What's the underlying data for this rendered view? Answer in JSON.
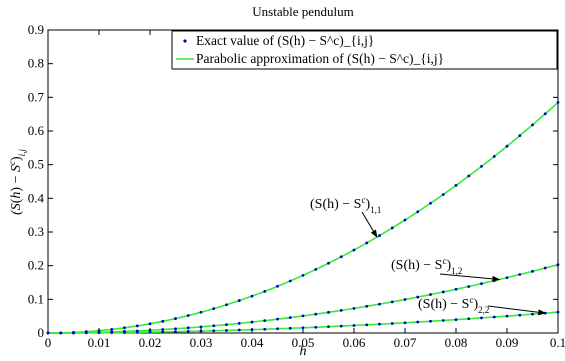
{
  "chart_data": {
    "type": "scatter",
    "title": "Unstable pendulum",
    "xlabel": "h",
    "ylabel": "(S(h) − S^c)_{i,j}",
    "xlim": [
      0,
      0.1
    ],
    "ylim": [
      0,
      0.9
    ],
    "x_ticks": [
      "0",
      "0.01",
      "0.02",
      "0.03",
      "0.04",
      "0.05",
      "0.06",
      "0.07",
      "0.08",
      "0.09",
      "0.1"
    ],
    "y_ticks": [
      "0",
      "0.1",
      "0.2",
      "0.3",
      "0.4",
      "0.5",
      "0.6",
      "0.7",
      "0.8",
      "0.9"
    ],
    "grid": false,
    "legend": {
      "position": "top-right",
      "entries": [
        {
          "label": "Exact value of (S(h) − S^c)_{i,j}",
          "marker": "dot",
          "color": "#0000cc"
        },
        {
          "label": "Parabolic approximation of (S(h) − S^c)_{i,j}",
          "marker": "line",
          "color": "#33ee33"
        }
      ]
    },
    "series": [
      {
        "name": "(S(h) − S^c)_{1,1}",
        "coefficient": 68.5
      },
      {
        "name": "(S(h) − S^c)_{1,2}",
        "coefficient": 20.3
      },
      {
        "name": "(S(h) − S^c)_{2,2}",
        "coefficient": 6.2
      }
    ],
    "x": [
      0,
      0.0025,
      0.005,
      0.0075,
      0.01,
      0.0125,
      0.015,
      0.0175,
      0.02,
      0.0225,
      0.025,
      0.0275,
      0.03,
      0.0325,
      0.035,
      0.0375,
      0.04,
      0.0425,
      0.045,
      0.0475,
      0.05,
      0.0525,
      0.055,
      0.0575,
      0.06,
      0.0625,
      0.065,
      0.0675,
      0.07,
      0.0725,
      0.075,
      0.0775,
      0.08,
      0.0825,
      0.085,
      0.0875,
      0.09,
      0.0925,
      0.095,
      0.0975,
      0.1
    ],
    "annotations": [
      {
        "base": "(S(h) − S",
        "sup": "c",
        "close": ")",
        "sub": "1,1",
        "series": 0
      },
      {
        "base": "(S(h) − S",
        "sup": "c",
        "close": ")",
        "sub": "1,2",
        "series": 1
      },
      {
        "base": "(S(h) − S",
        "sup": "c",
        "close": ")",
        "sub": "2,2",
        "series": 2
      }
    ],
    "colors": {
      "exact": "#0000cc",
      "parabolic": "#33ee33",
      "axis": "#000000"
    }
  }
}
